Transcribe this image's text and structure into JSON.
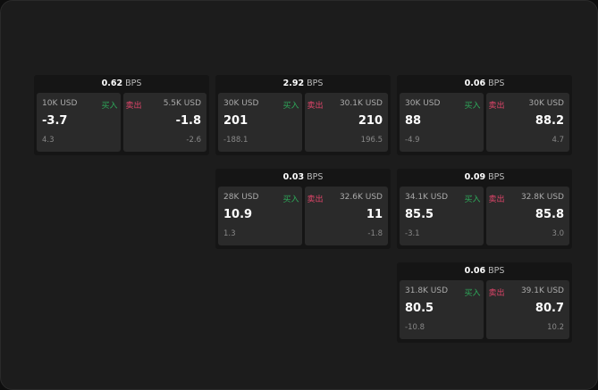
{
  "colors": {
    "buy": "#2ea95a",
    "sell": "#e0456a"
  },
  "cards": [
    {
      "spread": "0.62",
      "unit": "BPS",
      "bid": {
        "size": "10K USD",
        "label": "买入",
        "price": "-3.7",
        "change": "4.3"
      },
      "ask": {
        "size": "5.5K USD",
        "label": "卖出",
        "price": "-1.8",
        "change": "-2.6"
      }
    },
    {
      "spread": "2.92",
      "unit": "BPS",
      "bid": {
        "size": "30K USD",
        "label": "买入",
        "price": "201",
        "change": "-188.1"
      },
      "ask": {
        "size": "30.1K USD",
        "label": "卖出",
        "price": "210",
        "change": "196.5"
      }
    },
    {
      "spread": "0.06",
      "unit": "BPS",
      "bid": {
        "size": "30K USD",
        "label": "买入",
        "price": "88",
        "change": "-4.9"
      },
      "ask": {
        "size": "30K USD",
        "label": "卖出",
        "price": "88.2",
        "change": "4.7"
      }
    },
    {
      "spread": "0.03",
      "unit": "BPS",
      "bid": {
        "size": "28K USD",
        "label": "买入",
        "price": "10.9",
        "change": "1.3"
      },
      "ask": {
        "size": "32.6K USD",
        "label": "卖出",
        "price": "11",
        "change": "-1.8"
      }
    },
    {
      "spread": "0.09",
      "unit": "BPS",
      "bid": {
        "size": "34.1K USD",
        "label": "买入",
        "price": "85.5",
        "change": "-3.1"
      },
      "ask": {
        "size": "32.8K USD",
        "label": "卖出",
        "price": "85.8",
        "change": "3.0"
      }
    },
    {
      "spread": "0.06",
      "unit": "BPS",
      "bid": {
        "size": "31.8K USD",
        "label": "买入",
        "price": "80.5",
        "change": "-10.8"
      },
      "ask": {
        "size": "39.1K USD",
        "label": "卖出",
        "price": "80.7",
        "change": "10.2"
      }
    }
  ]
}
